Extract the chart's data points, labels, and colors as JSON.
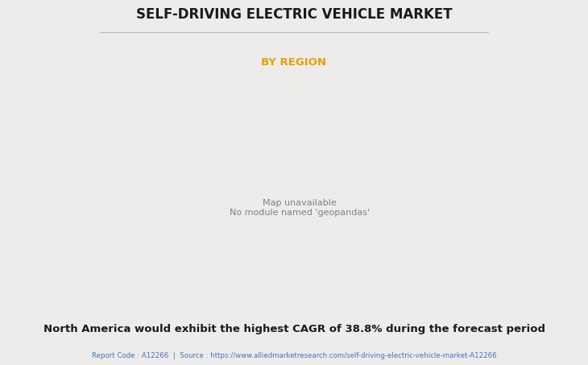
{
  "title": "SELF-DRIVING ELECTRIC VEHICLE MARKET",
  "subtitle": "BY REGION",
  "subtitle_color": "#E8A000",
  "title_color": "#1a1a1a",
  "background_color": "#eeecea",
  "bottom_text": "North America would exhibit the highest CAGR of 38.8% during the forecast period",
  "footer_text": "Report Code : A12266  |  Source : https://www.alliedmarketresearch.com/self-driving-electric-vehicle-market-A12266",
  "footer_color": "#4472C4",
  "bottom_text_color": "#1a1a1a",
  "land_color": "#90bf90",
  "highlight_color": "#f0f0f0",
  "ocean_color": "#eeecea",
  "border_color": "#7ab0d4",
  "shadow_color": "#888888",
  "usa_color": "#e8e8e8"
}
